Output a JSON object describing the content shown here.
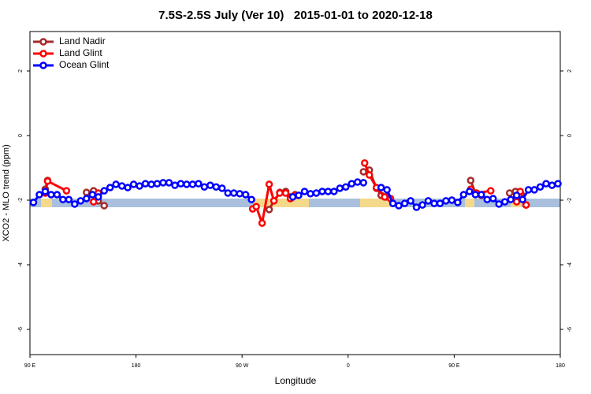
{
  "chart_data": {
    "type": "line",
    "title": "7.5S-2.5S July (Ver 10)   2015-01-01 to 2020-12-18",
    "xlabel": "Longitude",
    "ylabel": "XCO2 - MLO trend (ppm)",
    "xlim": [
      90,
      540
    ],
    "xticks": [
      {
        "value": 90,
        "label": "90 E"
      },
      {
        "value": 180,
        "label": "180"
      },
      {
        "value": 270,
        "label": "90 W"
      },
      {
        "value": 360,
        "label": "0"
      },
      {
        "value": 450,
        "label": "90 E"
      },
      {
        "value": 540,
        "label": "180"
      }
    ],
    "ylim": [
      -6.78,
      3.22
    ],
    "yticks": [
      2,
      0,
      -2,
      -4,
      -6
    ],
    "legend": "top-left",
    "series": [
      {
        "name": "Land Nadir",
        "color": "#a52a2a",
        "x": [
          103,
          105,
          null,
          138,
          144,
          148,
          153,
          null,
          293,
          297,
          302,
          307,
          311,
          315,
          null,
          373,
          378,
          384,
          388,
          393,
          null,
          464,
          468,
          473,
          null,
          497,
          502,
          507,
          511
        ],
        "values": [
          -1.66,
          -1.39,
          null,
          -1.76,
          -1.71,
          -2.02,
          -2.17,
          null,
          -2.29,
          -2.02,
          -1.76,
          -1.73,
          -1.9,
          -1.83,
          null,
          -1.12,
          -1.07,
          -1.63,
          -1.85,
          -1.9,
          null,
          -1.39,
          -1.78,
          -1.85,
          null,
          -1.78,
          -1.73,
          -1.83,
          -2.15
        ]
      },
      {
        "name": "Land Glint",
        "color": "#ff0000",
        "x": [
          103,
          105,
          121,
          null,
          144,
          148,
          null,
          279,
          282,
          287,
          293,
          297,
          302,
          307,
          311,
          315,
          null,
          374,
          378,
          384,
          391,
          396,
          null,
          464,
          469,
          481,
          null,
          503,
          506,
          511
        ],
        "values": [
          -1.78,
          -1.41,
          -1.71,
          null,
          -2.05,
          -1.78,
          null,
          -2.27,
          -2.2,
          -2.71,
          -1.51,
          -2.02,
          -1.78,
          -1.78,
          -1.95,
          -1.85,
          null,
          -0.85,
          -1.22,
          -1.61,
          -1.9,
          -1.95,
          null,
          -1.66,
          -1.78,
          -1.71,
          null,
          -2.05,
          -1.73,
          -2.15
        ]
      },
      {
        "name": "Ocean Glint",
        "color": "#0000ff",
        "x": [
          93,
          98,
          103,
          108,
          113,
          118,
          123,
          128,
          133,
          138,
          143,
          148,
          153,
          158,
          163,
          168,
          173,
          178,
          183,
          188,
          193,
          198,
          203,
          208,
          213,
          218,
          223,
          228,
          233,
          238,
          243,
          248,
          253,
          258,
          263,
          268,
          273,
          278,
          283,
          288,
          293,
          298,
          303,
          308,
          313,
          318,
          323,
          328,
          333,
          338,
          343,
          348,
          353,
          358,
          363,
          368,
          373,
          378,
          383,
          388,
          393,
          398,
          403,
          408,
          413,
          418,
          423,
          428,
          433,
          438,
          443,
          448,
          453,
          458,
          463,
          468,
          473,
          478,
          483,
          488,
          493,
          498,
          503,
          508,
          513,
          518,
          523,
          528,
          533,
          538
        ],
        "values": [
          -2.07,
          -1.83,
          -1.73,
          -1.83,
          -1.83,
          -1.98,
          -1.98,
          -2.12,
          -2.02,
          -1.95,
          -1.83,
          -1.9,
          -1.71,
          -1.61,
          -1.51,
          -1.56,
          -1.61,
          -1.51,
          -1.56,
          -1.49,
          -1.51,
          -1.49,
          -1.46,
          -1.46,
          -1.54,
          -1.49,
          -1.51,
          -1.51,
          -1.49,
          -1.59,
          -1.54,
          -1.59,
          -1.63,
          -1.78,
          -1.78,
          -1.8,
          -1.83,
          -1.98,
          null,
          null,
          null,
          null,
          null,
          null,
          -1.9,
          -1.85,
          -1.73,
          -1.8,
          -1.78,
          -1.73,
          -1.73,
          -1.73,
          -1.63,
          -1.59,
          -1.49,
          -1.44,
          -1.46,
          null,
          null,
          -1.61,
          -1.68,
          -2.1,
          -2.17,
          -2.1,
          -2.02,
          -2.22,
          -2.15,
          -2.02,
          -2.1,
          -2.1,
          -2.02,
          -2.0,
          -2.07,
          -1.83,
          -1.73,
          -1.83,
          -1.83,
          -1.98,
          -1.95,
          -2.12,
          -2.05,
          -1.98,
          -1.85,
          -1.98,
          -1.68,
          -1.68,
          -1.59,
          -1.49,
          -1.54,
          -1.49
        ]
      }
    ]
  }
}
